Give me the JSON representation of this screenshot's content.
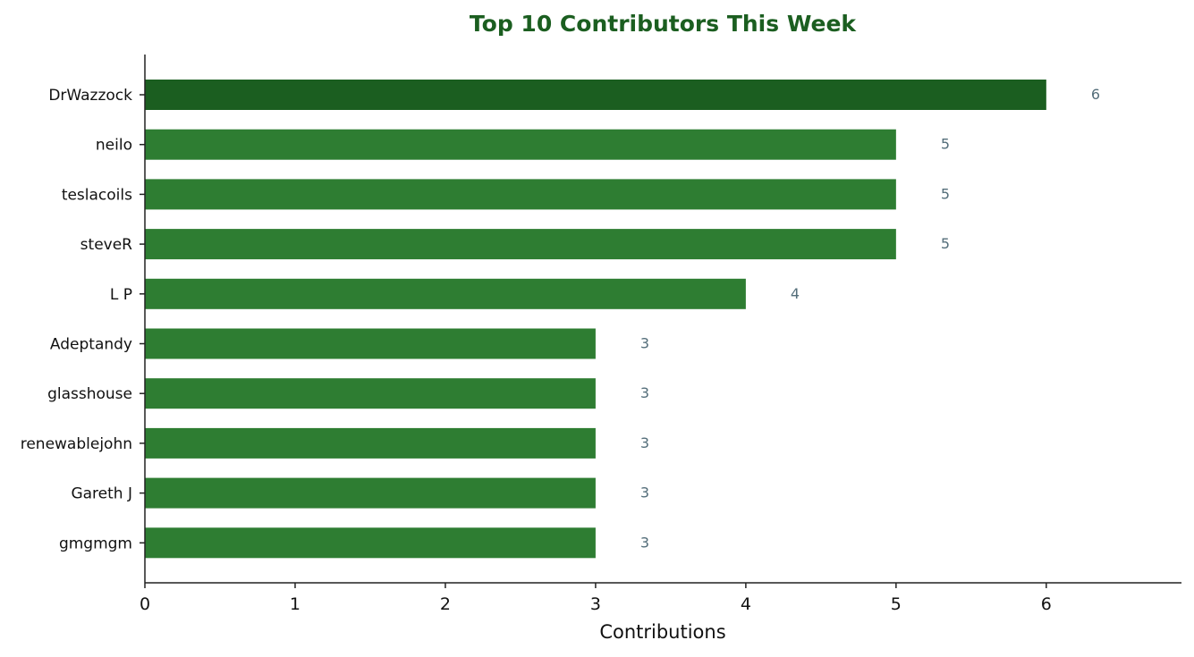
{
  "chart_data": {
    "type": "bar",
    "orientation": "horizontal",
    "title": "Top 10 Contributors This Week",
    "xlabel": "Contributions",
    "ylabel": "",
    "xlim": [
      0,
      6.9
    ],
    "xticks": [
      0,
      1,
      2,
      3,
      4,
      5,
      6
    ],
    "grid": false,
    "categories": [
      "DrWazzock",
      "neilo",
      "teslacoils",
      "steveR",
      "L P",
      "Adeptandy",
      "glasshouse",
      "renewablejohn",
      "Gareth J",
      "gmgmgm"
    ],
    "values": [
      6,
      5,
      5,
      5,
      4,
      3,
      3,
      3,
      3,
      3
    ],
    "data_labels": [
      "6",
      "5",
      "5",
      "5",
      "4",
      "3",
      "3",
      "3",
      "3",
      "3"
    ],
    "colors": {
      "top_bar": "#1b5e20",
      "bar": "#2e7d32",
      "title": "#1b5e20",
      "value_label": "#546e7a"
    }
  }
}
